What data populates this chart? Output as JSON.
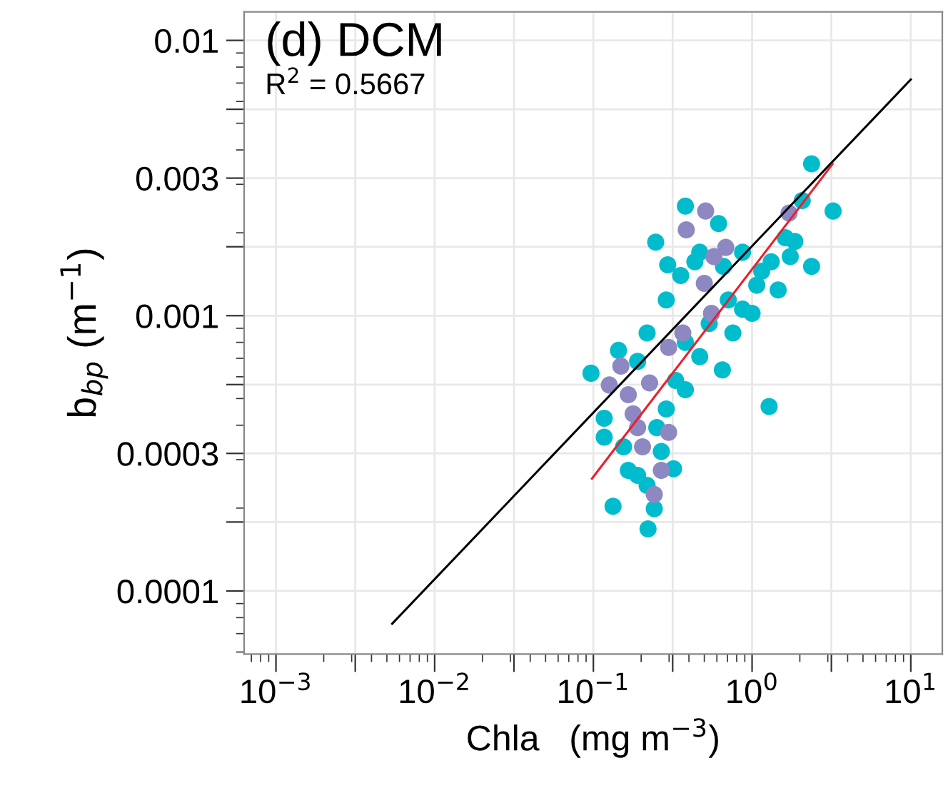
{
  "chart_data": {
    "type": "scatter",
    "log": "xy",
    "grid": true,
    "xlabel": "Chla   (mg m$^{−3}$)",
    "ylabel": "b$_{bp}$ (m$^{−1}$)",
    "annotations": [
      "(d) DCM",
      "R$^{2}$ = 0.5667"
    ],
    "xlim": [
      0.00063,
      15.8
    ],
    "ylim": [
      5.9e-05,
      0.0127
    ],
    "xticks": [
      {
        "value": 0.001,
        "label": "10$^{−3}$"
      },
      {
        "value": 0.00316,
        "label": null
      },
      {
        "value": 0.01,
        "label": "10$^{−2}$"
      },
      {
        "value": 0.0316,
        "label": null
      },
      {
        "value": 0.1,
        "label": "10$^{−1}$"
      },
      {
        "value": 0.316,
        "label": null
      },
      {
        "value": 1,
        "label": "10$^{0}$"
      },
      {
        "value": 3.16,
        "label": null
      },
      {
        "value": 10,
        "label": "10$^{1}$"
      }
    ],
    "yticks": [
      {
        "value": 0.0001,
        "label": "0.0001"
      },
      {
        "value": 0.000178,
        "label": null
      },
      {
        "value": 0.000316,
        "label": "0.0003"
      },
      {
        "value": 0.000562,
        "label": null
      },
      {
        "value": 0.001,
        "label": "0.001"
      },
      {
        "value": 0.00178,
        "label": null
      },
      {
        "value": 0.00316,
        "label": "0.003"
      },
      {
        "value": 0.00562,
        "label": null
      },
      {
        "value": 0.01,
        "label": "0.01"
      }
    ],
    "series": [
      {
        "marker": "circle",
        "color": "#00bccd",
        "x": [
          2.37,
          3.24,
          2.07,
          0.38,
          0.615,
          0.247,
          0.294,
          2.37,
          1.86,
          1.46,
          1.28,
          0.65,
          0.0966,
          0.144,
          0.133,
          0.221,
          0.32,
          0.242,
          0.117,
          0.166,
          0.251,
          0.38,
          0.468,
          0.757,
          0.871,
          1.07,
          1.32,
          1.62,
          0.468,
          0.355,
          0.288,
          0.218,
          0.19,
          0.117,
          0.155,
          0.268,
          0.19,
          0.537,
          0.708,
          1.0,
          0.66,
          0.38,
          0.33,
          0.288,
          0.436,
          0.871,
          1.15,
          0.218,
          1.74
        ],
        "values": [
          0.00356,
          0.0024,
          0.00262,
          0.0025,
          0.00216,
          0.00185,
          0.00153,
          0.00151,
          0.00186,
          0.00124,
          0.000468,
          0.000635,
          0.000618,
          0.000748,
          0.000203,
          0.000168,
          0.000278,
          0.000199,
          0.000362,
          0.000274,
          0.000392,
          0.000538,
          0.00071,
          0.000865,
          0.001056,
          0.00129,
          0.00157,
          0.00192,
          0.0017,
          0.0014,
          0.00114,
          0.000865,
          0.000682,
          0.000424,
          0.000334,
          0.000321,
          0.000263,
          0.000937,
          0.00114,
          0.00102,
          0.00151,
          0.0008,
          0.000582,
          0.000458,
          0.00157,
          0.0017,
          0.00145,
          0.000242,
          0.00164
        ]
      },
      {
        "marker": "circle",
        "color": "#8e88c2",
        "x": [
          0.51,
          0.385,
          1.71,
          0.575,
          0.5,
          0.555,
          0.366,
          0.298,
          0.226,
          0.166,
          0.178,
          0.19,
          0.298,
          0.242,
          0.268,
          0.149,
          0.126,
          0.204,
          0.683
        ],
        "values": [
          0.0024,
          0.00205,
          0.00236,
          0.00164,
          0.00131,
          0.00102,
          0.000865,
          0.000767,
          0.00057,
          0.000516,
          0.00044,
          0.000392,
          0.000377,
          0.000224,
          0.000274,
          0.000656,
          0.00056,
          0.000334,
          0.00177
        ]
      },
      {
        "type": "line",
        "color": "#000000",
        "x": [
          0.0054,
          10
        ],
        "values": [
          7.6e-05,
          0.00721
        ]
      },
      {
        "type": "line",
        "color": "#e8212b",
        "x": [
          0.098,
          3.22
        ],
        "values": [
          0.000256,
          0.00356
        ]
      }
    ]
  }
}
